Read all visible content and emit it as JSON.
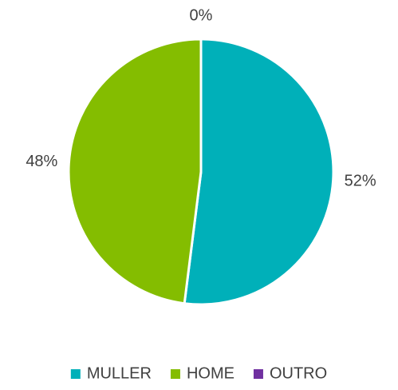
{
  "chart_data": {
    "type": "pie",
    "categories": [
      "MULLER",
      "HOME",
      "OUTRO"
    ],
    "values": [
      52,
      48,
      0
    ],
    "value_labels": [
      "52%",
      "48%",
      "0%"
    ],
    "colors": [
      "#00b0b9",
      "#84bd00",
      "#7030a0"
    ],
    "legend": "bottom"
  }
}
